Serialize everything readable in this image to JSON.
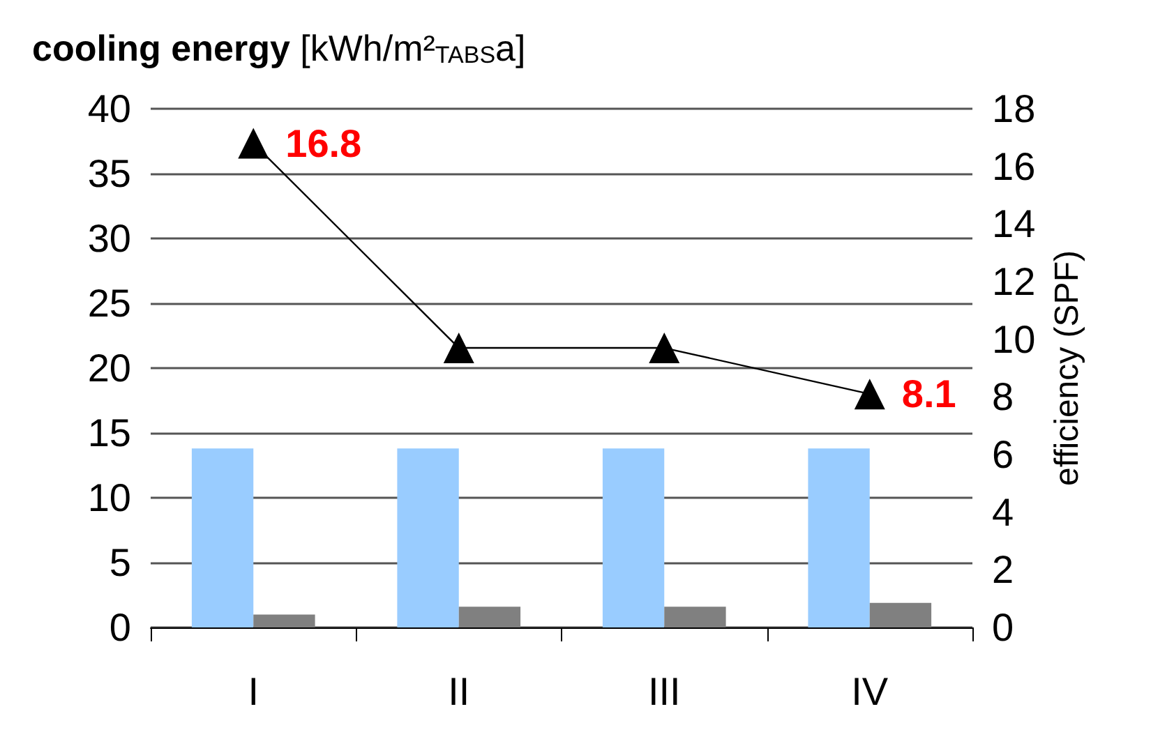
{
  "chart_data": {
    "type": "bar",
    "title": "cooling energy [kWh/m²$_{TABS}$a]",
    "y2label": "efficiency (SPF)",
    "categories": [
      "I",
      "II",
      "III",
      "IV"
    ],
    "series": [
      {
        "color": "#99ccff",
        "values": [
          13.8,
          13.8,
          13.8,
          13.8
        ]
      },
      {
        "color": "#808080",
        "values": [
          1.0,
          1.6,
          1.6,
          1.9
        ]
      },
      {
        "type": "line",
        "axis": "y2",
        "color": "#000000",
        "marker": "triangle",
        "values": [
          16.8,
          9.7,
          9.7,
          8.1
        ],
        "value_labels": [
          "16.8",
          null,
          null,
          "8.1"
        ]
      }
    ],
    "ylim": [
      0,
      40
    ],
    "yticks": [
      0,
      5,
      10,
      15,
      20,
      25,
      30,
      35,
      40
    ],
    "y2lim": [
      0,
      18
    ],
    "y2ticks": [
      0,
      2,
      4,
      6,
      8,
      10,
      12,
      14,
      16,
      18
    ],
    "grid": "y"
  }
}
